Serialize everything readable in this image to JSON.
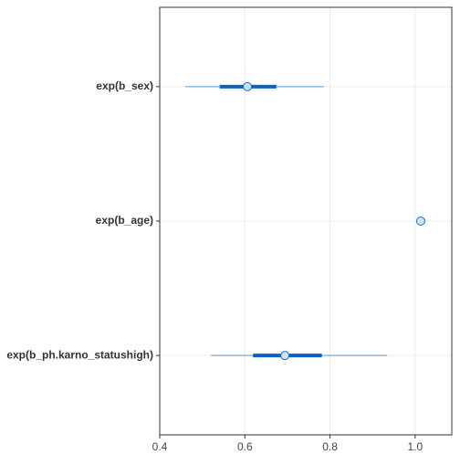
{
  "chart_data": {
    "type": "interval",
    "categories": [
      "exp(b_sex)",
      "exp(b_age)",
      "exp(b_ph.karno_statushigh)"
    ],
    "values": [
      0.606,
      1.013,
      0.694
    ],
    "inner_low": [
      0.541,
      1.011,
      0.619
    ],
    "inner_high": [
      0.674,
      1.015,
      0.781
    ],
    "outer_low": [
      0.46,
      1.008,
      0.52
    ],
    "outer_high": [
      0.786,
      1.018,
      0.934
    ],
    "xlim": [
      0.4,
      1.086
    ],
    "xticks": [
      0.4,
      0.6,
      0.8,
      {
        "value": 1,
        "label": "1.0"
      }
    ],
    "grid": true,
    "inner_color": "#0b62c6",
    "outer_color": "#4a9be0",
    "point_fill": "#cfe3f5",
    "point_stroke": "#1a6fc9"
  }
}
